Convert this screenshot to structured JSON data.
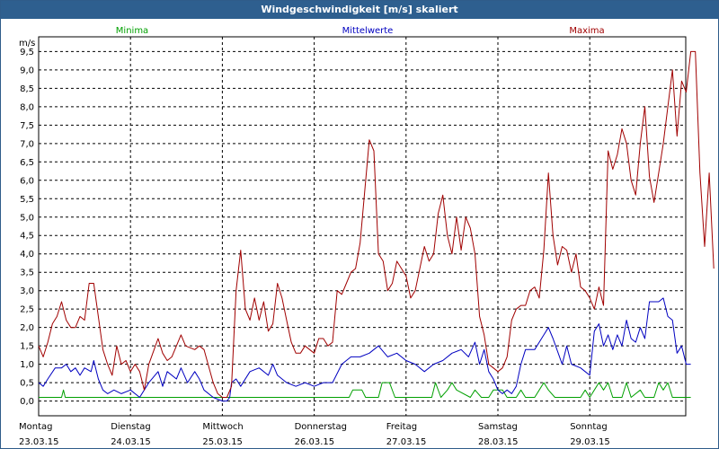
{
  "window": {
    "title": "Windgeschwindigkeit [m/s] skaliert"
  },
  "chart_data": {
    "type": "line",
    "unit_label": "m/s",
    "ylim": [
      0,
      9.5
    ],
    "y_ticks": [
      "0,0",
      "0,5",
      "1,0",
      "1,5",
      "2,0",
      "2,5",
      "3,0",
      "3,5",
      "4,0",
      "4,5",
      "5,0",
      "5,5",
      "6,0",
      "6,5",
      "7,0",
      "7,5",
      "8,0",
      "8,5",
      "9,0",
      "9,5"
    ],
    "days": [
      {
        "weekday": "Montag",
        "date": "23.03.15"
      },
      {
        "weekday": "Dienstag",
        "date": "24.03.15"
      },
      {
        "weekday": "Mittwoch",
        "date": "25.03.15"
      },
      {
        "weekday": "Donnerstag",
        "date": "26.03.15"
      },
      {
        "weekday": "Freitag",
        "date": "27.03.15"
      },
      {
        "weekday": "Samstag",
        "date": "28.03.15"
      },
      {
        "weekday": "Sonntag",
        "date": "29.03.15"
      }
    ],
    "grid": true,
    "legend_position": "top",
    "series": [
      {
        "name": "Minima",
        "color": "#00a000",
        "points": [
          [
            0,
            0.1
          ],
          [
            0.25,
            0.1
          ],
          [
            0.27,
            0.3
          ],
          [
            0.29,
            0.1
          ],
          [
            1.0,
            0.1
          ],
          [
            2.0,
            0.1
          ],
          [
            3.0,
            0.1
          ],
          [
            3.38,
            0.1
          ],
          [
            3.42,
            0.3
          ],
          [
            3.52,
            0.3
          ],
          [
            3.56,
            0.1
          ],
          [
            3.7,
            0.1
          ],
          [
            3.74,
            0.5
          ],
          [
            3.82,
            0.5
          ],
          [
            3.88,
            0.1
          ],
          [
            4.0,
            0.1
          ],
          [
            4.28,
            0.1
          ],
          [
            4.32,
            0.5
          ],
          [
            4.38,
            0.1
          ],
          [
            4.45,
            0.3
          ],
          [
            4.5,
            0.5
          ],
          [
            4.55,
            0.3
          ],
          [
            4.7,
            0.1
          ],
          [
            4.75,
            0.3
          ],
          [
            4.82,
            0.1
          ],
          [
            4.9,
            0.1
          ],
          [
            4.95,
            0.3
          ],
          [
            5.05,
            0.3
          ],
          [
            5.1,
            0.1
          ],
          [
            5.2,
            0.1
          ],
          [
            5.25,
            0.3
          ],
          [
            5.3,
            0.1
          ],
          [
            5.4,
            0.1
          ],
          [
            5.45,
            0.3
          ],
          [
            5.5,
            0.5
          ],
          [
            5.55,
            0.3
          ],
          [
            5.62,
            0.1
          ],
          [
            5.9,
            0.1
          ],
          [
            5.95,
            0.3
          ],
          [
            6.0,
            0.1
          ],
          [
            6.05,
            0.3
          ],
          [
            6.1,
            0.5
          ],
          [
            6.15,
            0.3
          ],
          [
            6.2,
            0.5
          ],
          [
            6.25,
            0.1
          ],
          [
            6.35,
            0.1
          ],
          [
            6.4,
            0.5
          ],
          [
            6.45,
            0.1
          ],
          [
            6.55,
            0.3
          ],
          [
            6.6,
            0.1
          ],
          [
            6.7,
            0.1
          ],
          [
            6.75,
            0.5
          ],
          [
            6.8,
            0.3
          ],
          [
            6.85,
            0.5
          ],
          [
            6.9,
            0.1
          ],
          [
            7.0,
            0.1
          ],
          [
            7.1,
            0.1
          ]
        ]
      },
      {
        "name": "Mittelwerte",
        "color": "#0000c0",
        "points": [
          [
            0,
            0.5
          ],
          [
            0.05,
            0.4
          ],
          [
            0.1,
            0.6
          ],
          [
            0.18,
            0.9
          ],
          [
            0.25,
            0.9
          ],
          [
            0.3,
            1.0
          ],
          [
            0.35,
            0.8
          ],
          [
            0.4,
            0.9
          ],
          [
            0.45,
            0.7
          ],
          [
            0.5,
            0.9
          ],
          [
            0.57,
            0.8
          ],
          [
            0.6,
            1.1
          ],
          [
            0.65,
            0.6
          ],
          [
            0.7,
            0.3
          ],
          [
            0.75,
            0.2
          ],
          [
            0.82,
            0.3
          ],
          [
            0.9,
            0.2
          ],
          [
            1.0,
            0.3
          ],
          [
            1.1,
            0.1
          ],
          [
            1.15,
            0.3
          ],
          [
            1.2,
            0.5
          ],
          [
            1.3,
            0.8
          ],
          [
            1.35,
            0.4
          ],
          [
            1.4,
            0.8
          ],
          [
            1.5,
            0.6
          ],
          [
            1.55,
            0.9
          ],
          [
            1.62,
            0.5
          ],
          [
            1.7,
            0.8
          ],
          [
            1.75,
            0.6
          ],
          [
            1.8,
            0.3
          ],
          [
            1.9,
            0.1
          ],
          [
            2.0,
            0.0
          ],
          [
            2.05,
            0.0
          ],
          [
            2.08,
            0.1
          ],
          [
            2.1,
            0.5
          ],
          [
            2.15,
            0.6
          ],
          [
            2.2,
            0.4
          ],
          [
            2.3,
            0.8
          ],
          [
            2.4,
            0.9
          ],
          [
            2.5,
            0.7
          ],
          [
            2.55,
            1.0
          ],
          [
            2.6,
            0.7
          ],
          [
            2.7,
            0.5
          ],
          [
            2.8,
            0.4
          ],
          [
            2.9,
            0.5
          ],
          [
            3.0,
            0.4
          ],
          [
            3.1,
            0.5
          ],
          [
            3.2,
            0.5
          ],
          [
            3.3,
            1.0
          ],
          [
            3.4,
            1.2
          ],
          [
            3.5,
            1.2
          ],
          [
            3.6,
            1.3
          ],
          [
            3.7,
            1.5
          ],
          [
            3.8,
            1.2
          ],
          [
            3.9,
            1.3
          ],
          [
            4.0,
            1.1
          ],
          [
            4.1,
            1.0
          ],
          [
            4.2,
            0.8
          ],
          [
            4.3,
            1.0
          ],
          [
            4.4,
            1.1
          ],
          [
            4.5,
            1.3
          ],
          [
            4.6,
            1.4
          ],
          [
            4.68,
            1.2
          ],
          [
            4.75,
            1.6
          ],
          [
            4.8,
            1.0
          ],
          [
            4.85,
            1.4
          ],
          [
            4.9,
            0.8
          ],
          [
            4.95,
            0.6
          ],
          [
            5.0,
            0.3
          ],
          [
            5.05,
            0.2
          ],
          [
            5.1,
            0.3
          ],
          [
            5.15,
            0.2
          ],
          [
            5.2,
            0.4
          ],
          [
            5.25,
            1.0
          ],
          [
            5.3,
            1.4
          ],
          [
            5.4,
            1.4
          ],
          [
            5.5,
            1.8
          ],
          [
            5.55,
            2.0
          ],
          [
            5.6,
            1.7
          ],
          [
            5.7,
            1.0
          ],
          [
            5.75,
            1.5
          ],
          [
            5.8,
            1.0
          ],
          [
            5.9,
            0.9
          ],
          [
            5.95,
            0.8
          ],
          [
            6.0,
            0.7
          ],
          [
            6.05,
            1.9
          ],
          [
            6.1,
            2.1
          ],
          [
            6.15,
            1.5
          ],
          [
            6.2,
            1.8
          ],
          [
            6.25,
            1.4
          ],
          [
            6.3,
            1.8
          ],
          [
            6.35,
            1.5
          ],
          [
            6.4,
            2.2
          ],
          [
            6.45,
            1.7
          ],
          [
            6.5,
            1.6
          ],
          [
            6.55,
            2.0
          ],
          [
            6.6,
            1.7
          ],
          [
            6.65,
            2.7
          ],
          [
            6.75,
            2.7
          ],
          [
            6.8,
            2.8
          ],
          [
            6.85,
            2.3
          ],
          [
            6.9,
            2.2
          ],
          [
            6.95,
            1.3
          ],
          [
            7.0,
            1.5
          ],
          [
            7.05,
            1.0
          ],
          [
            7.1,
            1.0
          ]
        ]
      },
      {
        "name": "Maxima",
        "color": "#a00000",
        "points": [
          [
            0,
            1.5
          ],
          [
            0.05,
            1.2
          ],
          [
            0.1,
            1.6
          ],
          [
            0.15,
            2.1
          ],
          [
            0.2,
            2.3
          ],
          [
            0.25,
            2.7
          ],
          [
            0.3,
            2.2
          ],
          [
            0.35,
            2.0
          ],
          [
            0.4,
            2.0
          ],
          [
            0.45,
            2.3
          ],
          [
            0.5,
            2.2
          ],
          [
            0.55,
            3.2
          ],
          [
            0.6,
            3.2
          ],
          [
            0.65,
            2.3
          ],
          [
            0.7,
            1.4
          ],
          [
            0.75,
            1.0
          ],
          [
            0.8,
            0.7
          ],
          [
            0.85,
            1.5
          ],
          [
            0.9,
            1.0
          ],
          [
            0.95,
            1.1
          ],
          [
            1.0,
            0.8
          ],
          [
            1.05,
            1.0
          ],
          [
            1.1,
            0.8
          ],
          [
            1.15,
            0.3
          ],
          [
            1.2,
            1.0
          ],
          [
            1.3,
            1.7
          ],
          [
            1.35,
            1.3
          ],
          [
            1.4,
            1.1
          ],
          [
            1.45,
            1.2
          ],
          [
            1.5,
            1.5
          ],
          [
            1.55,
            1.8
          ],
          [
            1.6,
            1.5
          ],
          [
            1.7,
            1.4
          ],
          [
            1.75,
            1.5
          ],
          [
            1.8,
            1.4
          ],
          [
            1.9,
            0.5
          ],
          [
            1.95,
            0.2
          ],
          [
            2.0,
            0.1
          ],
          [
            2.05,
            0.1
          ],
          [
            2.1,
            0.4
          ],
          [
            2.15,
            3.0
          ],
          [
            2.2,
            4.1
          ],
          [
            2.25,
            2.5
          ],
          [
            2.3,
            2.2
          ],
          [
            2.35,
            2.8
          ],
          [
            2.4,
            2.2
          ],
          [
            2.45,
            2.7
          ],
          [
            2.5,
            1.9
          ],
          [
            2.55,
            2.1
          ],
          [
            2.6,
            3.2
          ],
          [
            2.65,
            2.8
          ],
          [
            2.7,
            2.2
          ],
          [
            2.75,
            1.6
          ],
          [
            2.8,
            1.3
          ],
          [
            2.85,
            1.3
          ],
          [
            2.9,
            1.5
          ],
          [
            2.95,
            1.4
          ],
          [
            3.0,
            1.3
          ],
          [
            3.05,
            1.7
          ],
          [
            3.1,
            1.7
          ],
          [
            3.15,
            1.5
          ],
          [
            3.2,
            1.6
          ],
          [
            3.25,
            3.0
          ],
          [
            3.3,
            2.9
          ],
          [
            3.35,
            3.2
          ],
          [
            3.4,
            3.5
          ],
          [
            3.45,
            3.6
          ],
          [
            3.5,
            4.3
          ],
          [
            3.6,
            7.1
          ],
          [
            3.65,
            6.8
          ],
          [
            3.7,
            4.0
          ],
          [
            3.75,
            3.8
          ],
          [
            3.8,
            3.0
          ],
          [
            3.85,
            3.2
          ],
          [
            3.9,
            3.8
          ],
          [
            3.95,
            3.6
          ],
          [
            4.0,
            3.4
          ],
          [
            4.05,
            2.8
          ],
          [
            4.1,
            3.0
          ],
          [
            4.2,
            4.2
          ],
          [
            4.25,
            3.8
          ],
          [
            4.3,
            4.0
          ],
          [
            4.35,
            5.1
          ],
          [
            4.4,
            5.6
          ],
          [
            4.45,
            4.5
          ],
          [
            4.5,
            4.0
          ],
          [
            4.55,
            5.0
          ],
          [
            4.6,
            4.1
          ],
          [
            4.65,
            5.0
          ],
          [
            4.7,
            4.7
          ],
          [
            4.75,
            4.0
          ],
          [
            4.8,
            2.3
          ],
          [
            4.85,
            1.8
          ],
          [
            4.9,
            1.0
          ],
          [
            4.95,
            0.9
          ],
          [
            5.0,
            0.8
          ],
          [
            5.05,
            0.9
          ],
          [
            5.1,
            1.2
          ],
          [
            5.15,
            2.2
          ],
          [
            5.2,
            2.5
          ],
          [
            5.25,
            2.6
          ],
          [
            5.3,
            2.6
          ],
          [
            5.35,
            3.0
          ],
          [
            5.4,
            3.1
          ],
          [
            5.45,
            2.8
          ],
          [
            5.5,
            4.1
          ],
          [
            5.55,
            6.2
          ],
          [
            5.6,
            4.5
          ],
          [
            5.65,
            3.7
          ],
          [
            5.7,
            4.2
          ],
          [
            5.75,
            4.1
          ],
          [
            5.8,
            3.5
          ],
          [
            5.85,
            4.0
          ],
          [
            5.9,
            3.1
          ],
          [
            5.95,
            3.0
          ],
          [
            6.0,
            2.8
          ],
          [
            6.05,
            2.5
          ],
          [
            6.1,
            3.1
          ],
          [
            6.15,
            2.6
          ],
          [
            6.2,
            6.8
          ],
          [
            6.25,
            6.3
          ],
          [
            6.3,
            6.7
          ],
          [
            6.35,
            7.4
          ],
          [
            6.4,
            7.0
          ],
          [
            6.45,
            6.0
          ],
          [
            6.5,
            5.6
          ],
          [
            6.55,
            7.0
          ],
          [
            6.6,
            8.0
          ],
          [
            6.65,
            6.1
          ],
          [
            6.7,
            5.4
          ],
          [
            6.75,
            6.2
          ],
          [
            6.8,
            7.0
          ],
          [
            6.85,
            8.0
          ],
          [
            6.9,
            9.0
          ],
          [
            6.95,
            7.2
          ],
          [
            7.0,
            8.7
          ],
          [
            7.05,
            8.4
          ],
          [
            7.1,
            9.5
          ],
          [
            7.15,
            9.5
          ],
          [
            7.2,
            6.2
          ],
          [
            7.25,
            4.2
          ],
          [
            7.3,
            6.2
          ],
          [
            7.35,
            3.6
          ]
        ]
      }
    ]
  }
}
